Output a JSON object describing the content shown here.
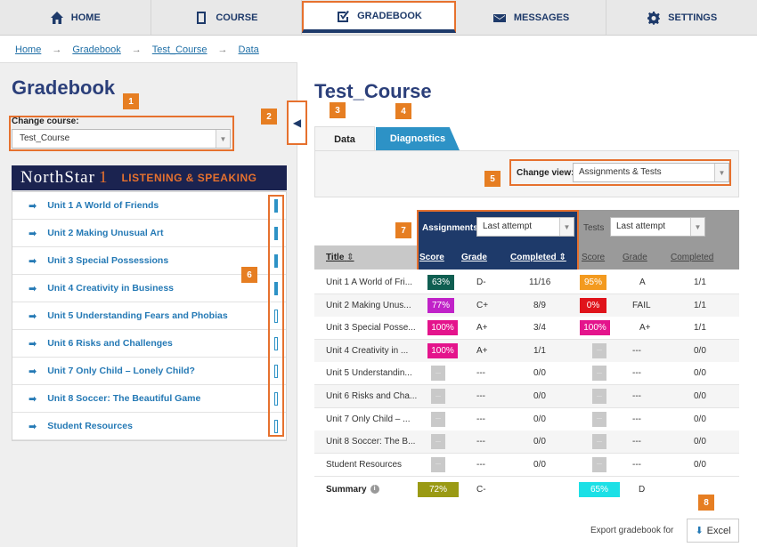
{
  "nav": {
    "tabs": [
      {
        "label": "HOME",
        "icon": "home-icon"
      },
      {
        "label": "COURSE",
        "icon": "book-icon"
      },
      {
        "label": "GRADEBOOK",
        "icon": "checkbox-icon"
      },
      {
        "label": "MESSAGES",
        "icon": "envelope-icon"
      },
      {
        "label": "SETTINGS",
        "icon": "gear-icon"
      }
    ],
    "active": "GRADEBOOK"
  },
  "breadcrumb": {
    "items": [
      "Home",
      "Gradebook",
      "Test_Course",
      "Data"
    ],
    "separator": "→"
  },
  "left": {
    "title": "Gradebook",
    "change_course_label": "Change course:",
    "course_value": "Test_Course",
    "banner": {
      "brand": "NorthStar",
      "level": "1",
      "subtitle": "LISTENING & SPEAKING"
    },
    "units": [
      {
        "label": "Unit 1 A World of Friends",
        "progress": 1
      },
      {
        "label": "Unit 2 Making Unusual Art",
        "progress": 1
      },
      {
        "label": "Unit 3 Special Possessions",
        "progress": 1
      },
      {
        "label": "Unit 4 Creativity in Business",
        "progress": 1
      },
      {
        "label": "Unit 5 Understanding Fears and Phobias",
        "progress": 0
      },
      {
        "label": "Unit 6 Risks and Challenges",
        "progress": 0
      },
      {
        "label": "Unit 7 Only Child – Lonely Child?",
        "progress": 0
      },
      {
        "label": "Unit 8 Soccer: The Beautiful Game",
        "progress": 0
      },
      {
        "label": "Student Resources",
        "progress": 0
      }
    ]
  },
  "markers": [
    "1",
    "2",
    "3",
    "4",
    "5",
    "6",
    "7",
    "8"
  ],
  "right": {
    "title": "Test_Course",
    "tabs": {
      "data": "Data",
      "diagnostics": "Diagnostics"
    },
    "change_view_label": "Change view:",
    "change_view_value": "Assignments & Tests",
    "assignments_label": "Assignments",
    "assignments_attempt": "Last attempt",
    "tests_label": "Tests",
    "tests_attempt": "Last attempt",
    "columns": {
      "title": "Title",
      "a_score": "Score",
      "a_grade": "Grade",
      "a_completed": "Completed",
      "t_score": "Score",
      "t_grade": "Grade",
      "t_completed": "Completed"
    },
    "rows": [
      {
        "title": "Unit 1 A World of Fri...",
        "a_score": "63%",
        "a_color": "#0f5e51",
        "a_grade": "D-",
        "a_completed": "11/16",
        "t_score": "95%",
        "t_color": "#f39a1f",
        "t_grade": "A",
        "t_completed": "1/1"
      },
      {
        "title": "Unit 2 Making Unus...",
        "a_score": "77%",
        "a_color": "#c022c8",
        "a_grade": "C+",
        "a_completed": "8/9",
        "t_score": "0%",
        "t_color": "#e0141b",
        "t_grade": "FAIL",
        "t_completed": "1/1"
      },
      {
        "title": "Unit 3 Special Posse...",
        "a_score": "100%",
        "a_color": "#e4148c",
        "a_grade": "A+",
        "a_completed": "3/4",
        "t_score": "100%",
        "t_color": "#e4148c",
        "t_grade": "A+",
        "t_completed": "1/1"
      },
      {
        "title": "Unit 4 Creativity in ...",
        "a_score": "100%",
        "a_color": "#e4148c",
        "a_grade": "A+",
        "a_completed": "1/1",
        "t_score": "",
        "t_color": "",
        "t_grade": "---",
        "t_completed": "0/0"
      },
      {
        "title": "Unit 5 Understandin...",
        "a_score": "",
        "a_color": "",
        "a_grade": "---",
        "a_completed": "0/0",
        "t_score": "",
        "t_color": "",
        "t_grade": "---",
        "t_completed": "0/0"
      },
      {
        "title": "Unit 6 Risks and Cha...",
        "a_score": "",
        "a_color": "",
        "a_grade": "---",
        "a_completed": "0/0",
        "t_score": "",
        "t_color": "",
        "t_grade": "---",
        "t_completed": "0/0"
      },
      {
        "title": "Unit 7 Only Child – ...",
        "a_score": "",
        "a_color": "",
        "a_grade": "---",
        "a_completed": "0/0",
        "t_score": "",
        "t_color": "",
        "t_grade": "---",
        "t_completed": "0/0"
      },
      {
        "title": "Unit 8 Soccer: The B...",
        "a_score": "",
        "a_color": "",
        "a_grade": "---",
        "a_completed": "0/0",
        "t_score": "",
        "t_color": "",
        "t_grade": "---",
        "t_completed": "0/0"
      },
      {
        "title": "Student Resources",
        "a_score": "",
        "a_color": "",
        "a_grade": "---",
        "a_completed": "0/0",
        "t_score": "",
        "t_color": "",
        "t_grade": "---",
        "t_completed": "0/0"
      }
    ],
    "summary": {
      "label": "Summary",
      "a_score": "72%",
      "a_color": "#9a9a14",
      "a_grade": "C-",
      "t_score": "65%",
      "t_color": "#1ce0e6",
      "t_grade": "D"
    },
    "export_label": "Export gradebook for",
    "excel_label": "Excel"
  },
  "colors": {
    "accent": "#e6712e",
    "navy": "#1e3a6a",
    "link": "#2479b5"
  }
}
